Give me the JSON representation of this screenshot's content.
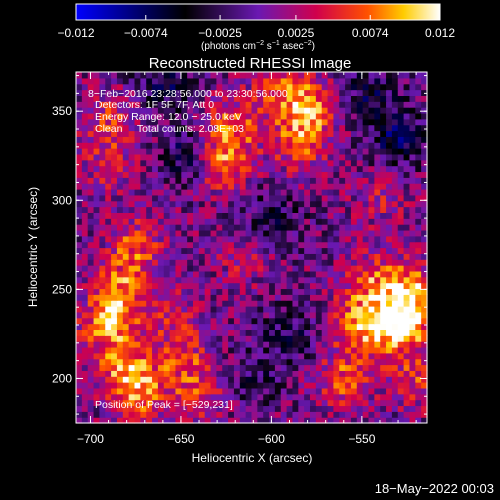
{
  "chart_data": {
    "type": "heatmap",
    "title": "Reconstructed RHESSI Image",
    "xlabel": "Heliocentric X (arcsec)",
    "ylabel": "Heliocentric Y (arcsec)",
    "xlim": [
      -708,
      -514
    ],
    "ylim": [
      175,
      372
    ],
    "x_ticks": [
      -700,
      -650,
      -600,
      -550
    ],
    "x_tick_labels": [
      "−700",
      "−650",
      "−600",
      "−550"
    ],
    "y_ticks": [
      200,
      250,
      300,
      350
    ],
    "y_tick_labels": [
      "200",
      "250",
      "300",
      "350"
    ],
    "colorbar": {
      "range": [
        -0.012,
        0.012
      ],
      "ticks": [
        -0.012,
        -0.0074,
        -0.0025,
        0.0025,
        0.0074,
        0.012
      ],
      "tick_labels": [
        "−0.012",
        "−0.0074",
        "−0.0025",
        "0.0025",
        "0.0074",
        "0.012"
      ],
      "unit_prefix": "(photons cm",
      "unit_exp1": "−2",
      "unit_mid": " s",
      "unit_exp2": "−1",
      "unit_mid2": " asec",
      "unit_exp3": "−2",
      "unit_suffix": ")",
      "colormap": "blue-black-purple-red-orange-yellow-white"
    },
    "annotations": [
      "8−Feb−2016 23:28:56.000 to 23:30:56.000",
      "Detectors: 1F 5F 7F, Att 0",
      "Energy Range: 12.0 − 25.0 keV",
      "Clean     Total counts: 2.08E+03"
    ],
    "peak_label": "Position of Peak = [−529,231]",
    "peak": [
      -529,
      231
    ],
    "blobs": [
      {
        "x": -628,
        "y": 322,
        "amp": 0.008
      },
      {
        "x": -622,
        "y": 342,
        "amp": 0.006
      },
      {
        "x": -578,
        "y": 352,
        "amp": 0.0075
      },
      {
        "x": -585,
        "y": 332,
        "amp": 0.006
      },
      {
        "x": -595,
        "y": 362,
        "amp": 0.005
      },
      {
        "x": -688,
        "y": 345,
        "amp": 0.005
      },
      {
        "x": -690,
        "y": 320,
        "amp": 0.0035
      },
      {
        "x": -675,
        "y": 275,
        "amp": 0.006
      },
      {
        "x": -683,
        "y": 250,
        "amp": 0.007
      },
      {
        "x": -690,
        "y": 230,
        "amp": 0.008
      },
      {
        "x": -680,
        "y": 205,
        "amp": 0.0075
      },
      {
        "x": -672,
        "y": 190,
        "amp": 0.006
      },
      {
        "x": -655,
        "y": 235,
        "amp": 0.004
      },
      {
        "x": -648,
        "y": 210,
        "amp": 0.005
      },
      {
        "x": -640,
        "y": 190,
        "amp": 0.004
      },
      {
        "x": -560,
        "y": 200,
        "amp": 0.006
      },
      {
        "x": -550,
        "y": 230,
        "amp": 0.008
      },
      {
        "x": -545,
        "y": 255,
        "amp": 0.006
      },
      {
        "x": -529,
        "y": 231,
        "amp": 0.012
      },
      {
        "x": -522,
        "y": 250,
        "amp": 0.008
      },
      {
        "x": -520,
        "y": 200,
        "amp": 0.005
      },
      {
        "x": -540,
        "y": 300,
        "amp": 0.003
      },
      {
        "x": -615,
        "y": 268,
        "amp": 0.003
      },
      {
        "x": -645,
        "y": 325,
        "amp": -0.006
      },
      {
        "x": -600,
        "y": 290,
        "amp": -0.004
      },
      {
        "x": -530,
        "y": 335,
        "amp": -0.006
      },
      {
        "x": -545,
        "y": 360,
        "amp": -0.005
      },
      {
        "x": -590,
        "y": 225,
        "amp": -0.004
      },
      {
        "x": -660,
        "y": 365,
        "amp": -0.005
      },
      {
        "x": -610,
        "y": 200,
        "amp": -0.003
      }
    ]
  },
  "footer": {
    "timestamp": "18−May−2022 00:03"
  }
}
